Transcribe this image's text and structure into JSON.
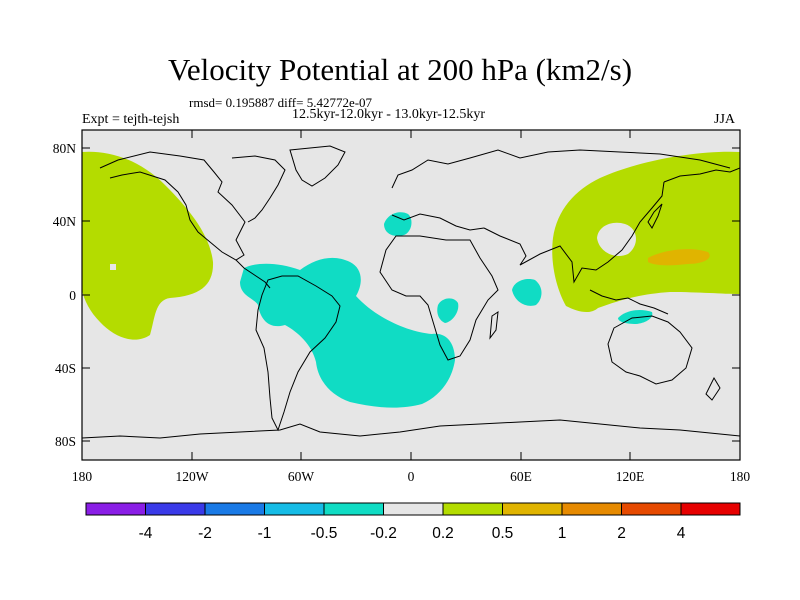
{
  "title": "Velocity Potential at 200 hPa (km2/s)",
  "stats": "rmsd= 0.195887 diff= 5.42772e-07",
  "period": "12.5kyr-12.0kyr - 13.0kyr-12.5kyr",
  "experiment": "Expt = tejth-tejsh",
  "season": "JJA",
  "map": {
    "lat_range": [
      -90,
      90
    ],
    "lon_range": [
      -180,
      180
    ],
    "y_ticks": [
      "80N",
      "40N",
      "0",
      "40S",
      "80S"
    ],
    "x_ticks": [
      "180",
      "120W",
      "60W",
      "0",
      "60E",
      "120E",
      "180"
    ],
    "background_color": "#e6e6e6"
  },
  "colorbar": {
    "labels": [
      "-4",
      "-2",
      "-1",
      "-0.5",
      "-0.2",
      "0.2",
      "0.5",
      "1",
      "2",
      "4"
    ],
    "colors": [
      "#8a1ee6",
      "#3a3ae8",
      "#1a7ae6",
      "#16bce6",
      "#10dcc4",
      "#e6e6e6",
      "#b4dc00",
      "#e0b400",
      "#e68a00",
      "#e64a00",
      "#e60000"
    ]
  }
}
